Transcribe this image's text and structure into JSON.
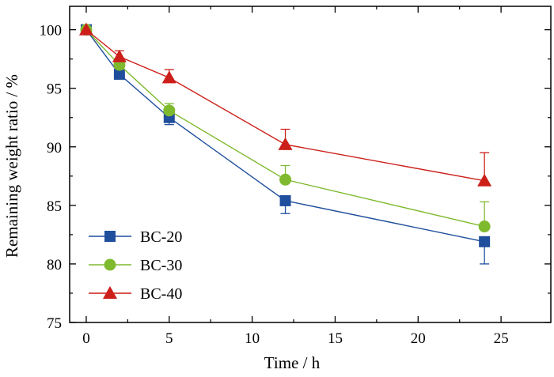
{
  "chart_data": {
    "type": "line",
    "title": "",
    "xlabel": "Time / h",
    "ylabel": "Remaining weight ratio / %",
    "xlim": [
      -1,
      28
    ],
    "ylim": [
      75,
      102
    ],
    "xticks": [
      0,
      5,
      10,
      15,
      20,
      25
    ],
    "yticks": [
      75,
      80,
      85,
      90,
      95,
      100
    ],
    "x": [
      0,
      2,
      5,
      12,
      24
    ],
    "legend_position": "bottom-left",
    "grid": false,
    "series": [
      {
        "name": "BC-20",
        "marker": "square",
        "color": "#1f4e9c",
        "values": [
          100,
          96.2,
          92.5,
          85.4,
          81.9
        ],
        "errors": [
          0,
          0.3,
          0.6,
          1.1,
          1.9
        ]
      },
      {
        "name": "BC-30",
        "marker": "circle",
        "color": "#7fba2e",
        "values": [
          100,
          97.0,
          93.1,
          87.2,
          83.2
        ],
        "errors": [
          0,
          0.5,
          0.6,
          1.2,
          2.1
        ]
      },
      {
        "name": "BC-40",
        "marker": "triangle",
        "color": "#cc1f1a",
        "values": [
          100,
          97.7,
          95.9,
          90.2,
          87.1
        ],
        "errors": [
          0,
          0.5,
          0.7,
          1.3,
          2.4
        ]
      }
    ]
  }
}
